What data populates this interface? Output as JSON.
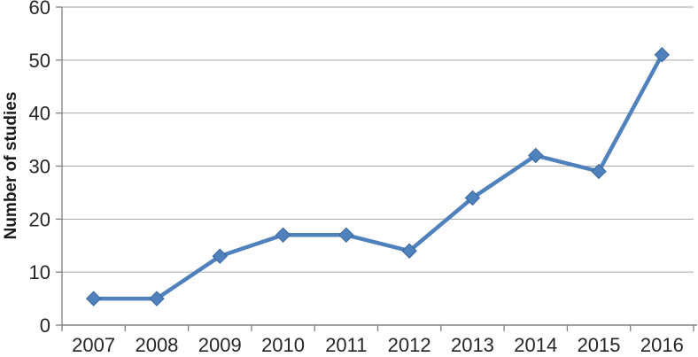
{
  "chart_data": {
    "type": "line",
    "title": "",
    "xlabel": "",
    "ylabel": "Number of studies",
    "categories": [
      "2007",
      "2008",
      "2009",
      "2010",
      "2011",
      "2012",
      "2013",
      "2014",
      "2015",
      "2016"
    ],
    "series": [
      {
        "name": "Number of studies",
        "values": [
          5,
          5,
          13,
          17,
          17,
          14,
          24,
          32,
          29,
          51
        ]
      }
    ],
    "ylim": [
      0,
      60
    ],
    "yticks": [
      0,
      10,
      20,
      30,
      40,
      50,
      60
    ],
    "grid": "horizontal",
    "legend_position": "none",
    "marker": "diamond",
    "colors": {
      "series_line": "#4f81bd",
      "marker_fill": "#4f81bd",
      "marker_edge": "#3a679c",
      "gridline": "#a6a6a6",
      "axis_line": "#808080",
      "tick_label": "#262626",
      "axis_title": "#1a1a1a",
      "background": "#ffffff"
    }
  }
}
